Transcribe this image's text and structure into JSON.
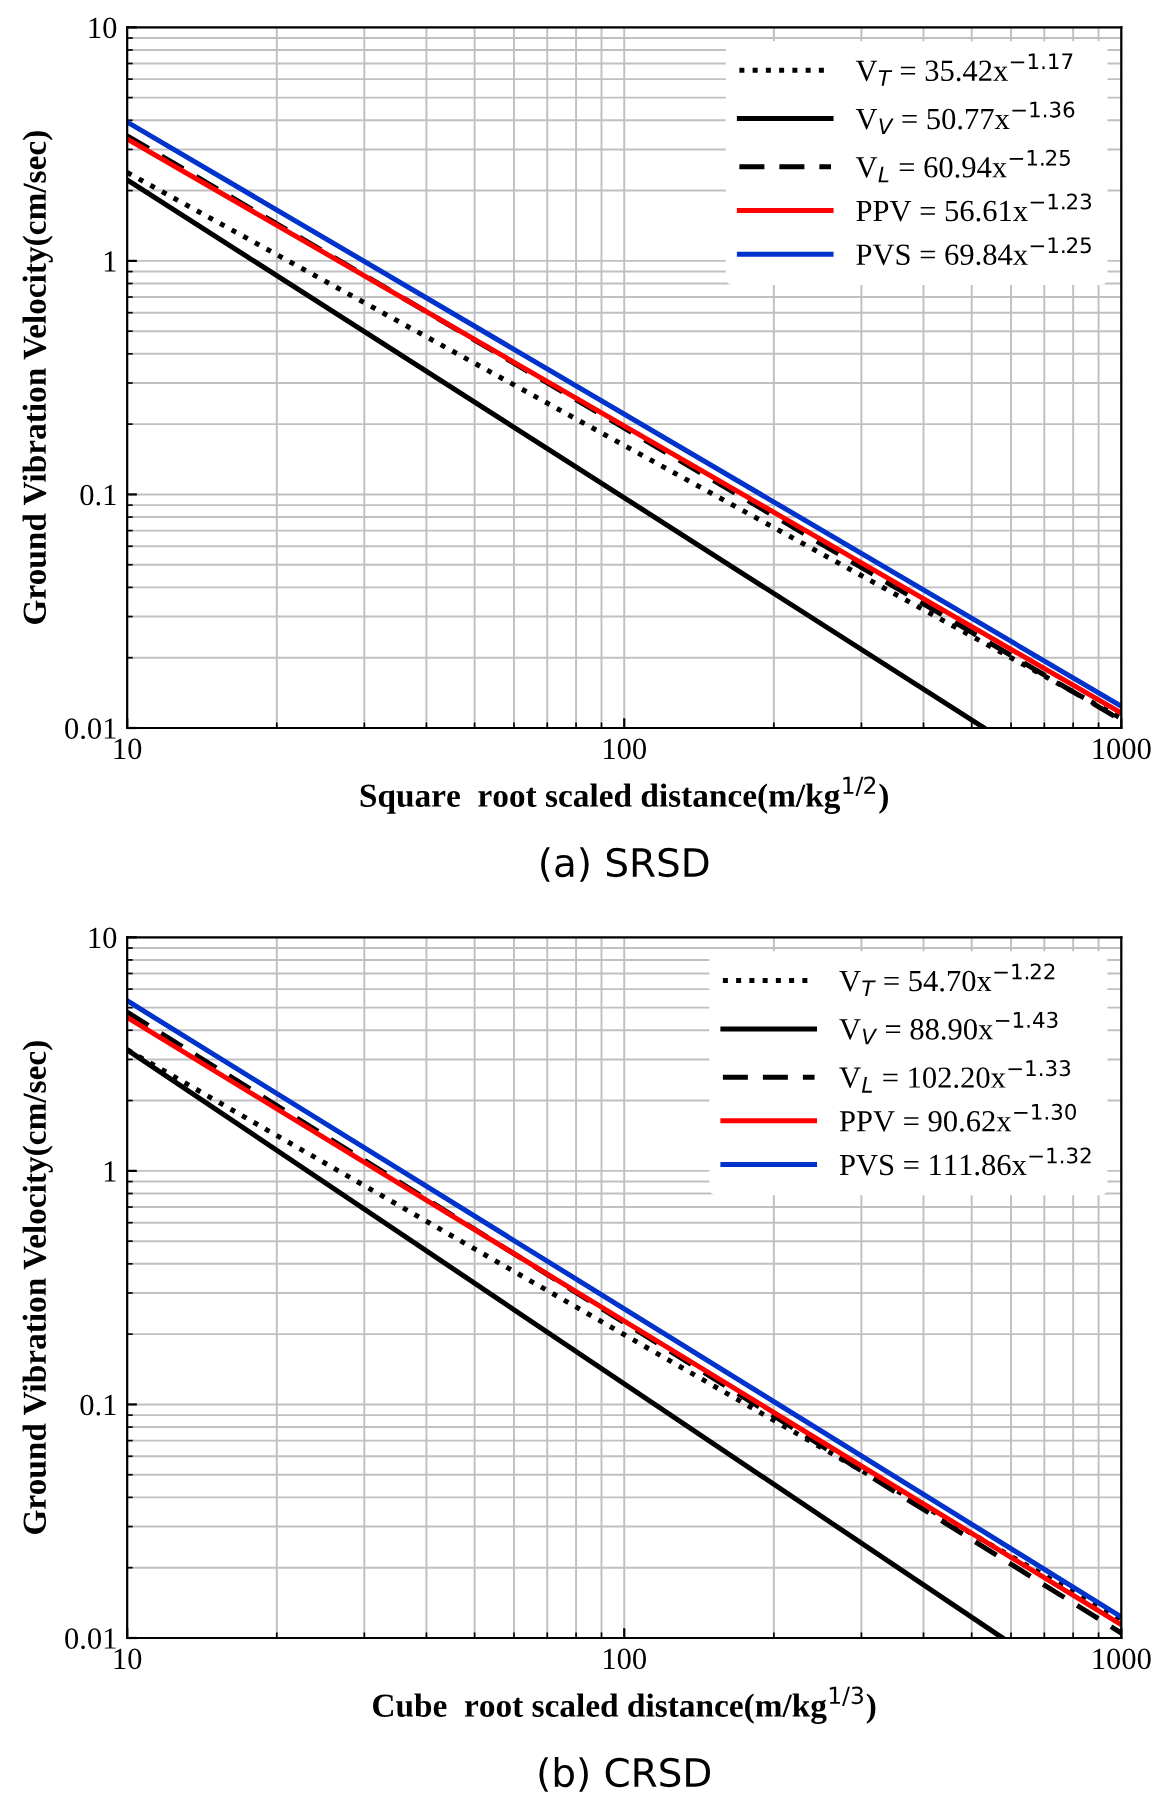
{
  "chart_data": [
    {
      "type": "line",
      "xlabel": "Square  root scaled distance(m/kg$^{1/2}$)",
      "ylabel": "Ground Vibration Velocity(cm/sec)",
      "annotations": [
        "(a) SRSD"
      ],
      "log": "xy",
      "grid": true,
      "legend": "top right",
      "xlim": [
        10,
        1000
      ],
      "ylim": [
        0.01,
        10
      ],
      "xticks": [
        10,
        100,
        1000
      ],
      "yticks": [
        0.01,
        0.1,
        1,
        10
      ],
      "series": [
        {
          "name": "V$_{T}$ = 35.42x$^{−1.17}$",
          "color": "#000000",
          "line_style": "dotted",
          "x": [
            10,
            1000
          ],
          "values": [
            2.39,
            0.011
          ]
        },
        {
          "name": "V$_{V}$ = 50.77x$^{−1.36}$",
          "color": "#000000",
          "line_style": "solid",
          "x": [
            10,
            530
          ],
          "values": [
            2.22,
            0.01
          ]
        },
        {
          "name": "V$_{L}$ = 60.94x$^{−1.25}$",
          "color": "#000000",
          "line_style": "dashed",
          "x": [
            10,
            1000
          ],
          "values": [
            3.43,
            0.0108
          ]
        },
        {
          "name": "PPV = 56.61x$^{−1.23}$",
          "color": "#ff0000",
          "line_style": "solid",
          "x": [
            10,
            1000
          ],
          "values": [
            3.33,
            0.0116
          ]
        },
        {
          "name": "PVS = 69.84x$^{−1.25}$",
          "color": "#0033cc",
          "line_style": "solid",
          "x": [
            10,
            1000
          ],
          "values": [
            3.93,
            0.0124
          ]
        }
      ]
    },
    {
      "type": "line",
      "xlabel": "Cube  root scaled distance(m/kg$^{1/3}$)",
      "ylabel": "Ground Vibration Velocity(cm/sec)",
      "annotations": [
        "(b) CRSD"
      ],
      "log": "xy",
      "grid": true,
      "legend": "top right",
      "xlim": [
        10,
        1000
      ],
      "ylim": [
        0.01,
        10
      ],
      "xticks": [
        10,
        100,
        1000
      ],
      "yticks": [
        0.01,
        0.1,
        1,
        10
      ],
      "series": [
        {
          "name": "V$_{T}$ = 54.70x$^{−1.22}$",
          "color": "#000000",
          "line_style": "dotted",
          "x": [
            10,
            1000
          ],
          "values": [
            3.3,
            0.012
          ]
        },
        {
          "name": "V$_{V}$ = 88.90x$^{−1.43}$",
          "color": "#000000",
          "line_style": "solid",
          "x": [
            10,
            577
          ],
          "values": [
            3.3,
            0.01
          ]
        },
        {
          "name": "V$_{L}$ = 102.20x$^{−1.33}$",
          "color": "#000000",
          "line_style": "dashed",
          "x": [
            10,
            1000
          ],
          "values": [
            4.78,
            0.0105
          ]
        },
        {
          "name": "PPV = 90.62x$^{−1.30}$",
          "color": "#ff0000",
          "line_style": "solid",
          "x": [
            10,
            1000
          ],
          "values": [
            4.54,
            0.0114
          ]
        },
        {
          "name": "PVS = 111.86x$^{−1.32}$",
          "color": "#0033cc",
          "line_style": "solid",
          "x": [
            10,
            1000
          ],
          "values": [
            5.35,
            0.0123
          ]
        }
      ]
    }
  ]
}
